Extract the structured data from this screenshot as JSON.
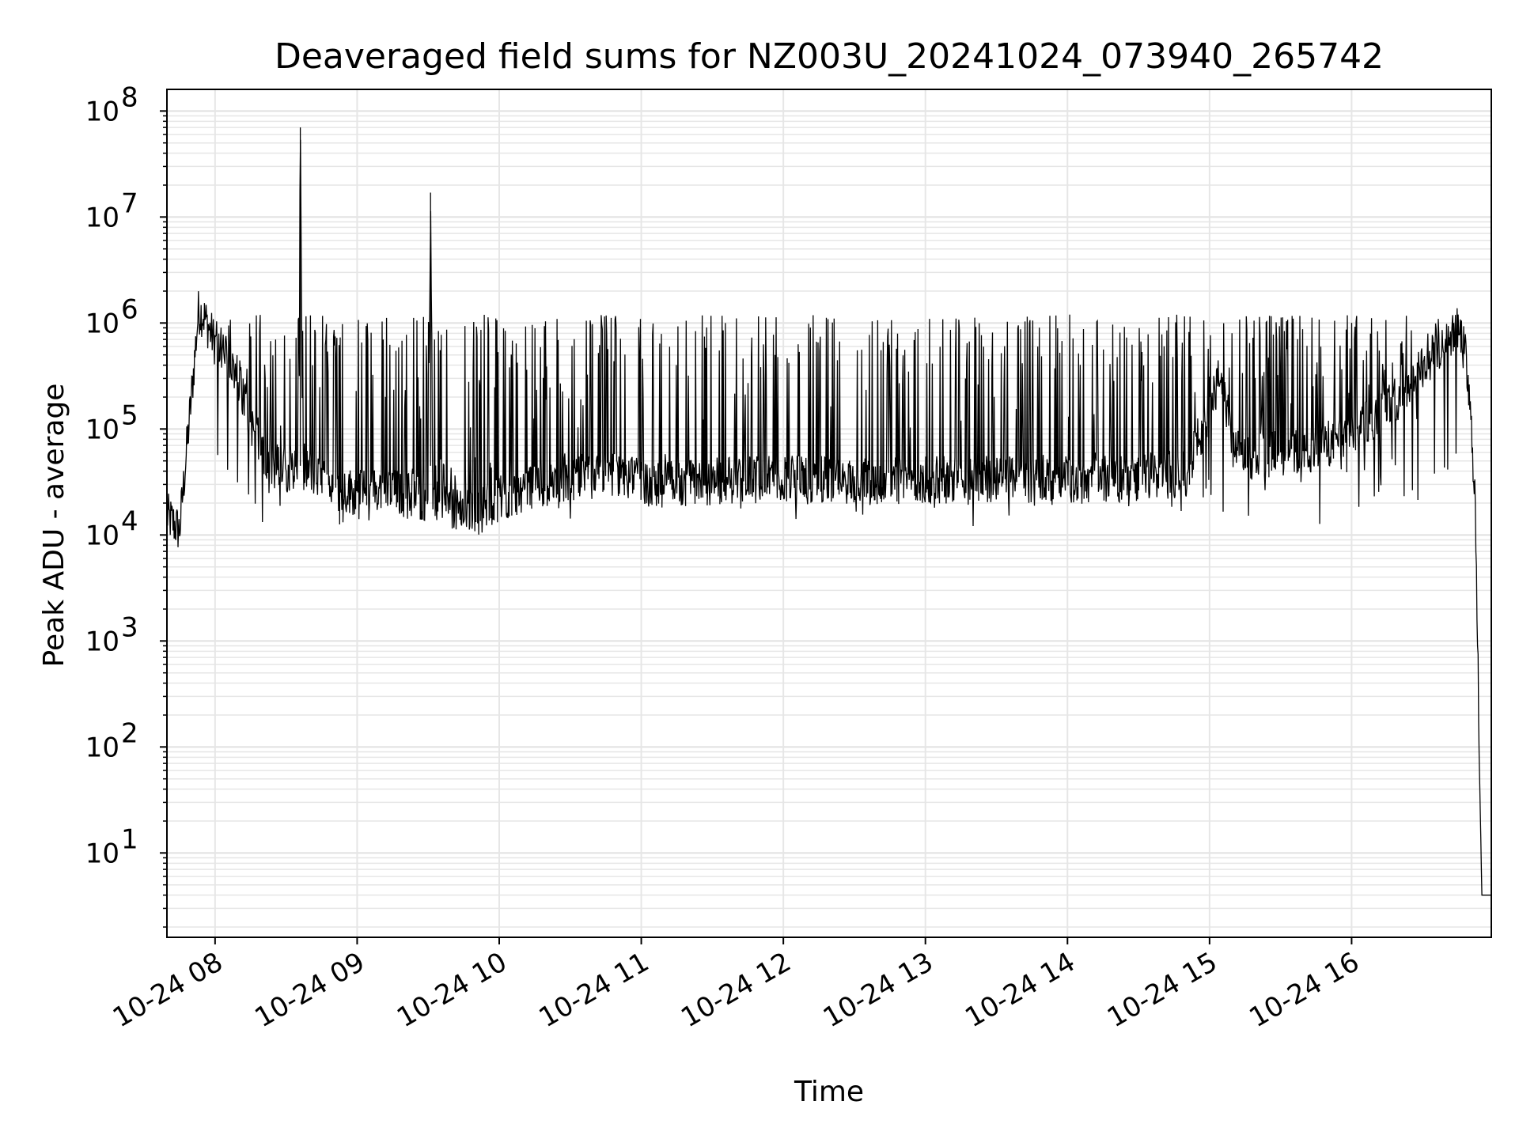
{
  "chart_data": {
    "type": "line",
    "title": "Deaveraged field sums for NZ003U_20241024_073940_265742",
    "xlabel": "Time",
    "ylabel": "Peak ADU - average",
    "xscale": "time",
    "yscale": "log",
    "xlim": [
      "2024-10-24T07:39:40",
      "2024-10-24T16:59:00"
    ],
    "ylim": [
      1.6,
      160000000
    ],
    "grid": true,
    "legend": "none",
    "x_ticks": [
      "10-24 08",
      "10-24 09",
      "10-24 10",
      "10-24 11",
      "10-24 12",
      "10-24 13",
      "10-24 14",
      "10-24 15",
      "10-24 16"
    ],
    "x_tick_times": [
      "2024-10-24T08:00",
      "2024-10-24T09:00",
      "2024-10-24T10:00",
      "2024-10-24T11:00",
      "2024-10-24T12:00",
      "2024-10-24T13:00",
      "2024-10-24T14:00",
      "2024-10-24T15:00",
      "2024-10-24T16:00"
    ],
    "y_ticks": [
      {
        "exp": 1,
        "value": 10
      },
      {
        "exp": 2,
        "value": 100
      },
      {
        "exp": 3,
        "value": 1000
      },
      {
        "exp": 4,
        "value": 10000
      },
      {
        "exp": 5,
        "value": 100000
      },
      {
        "exp": 6,
        "value": 1000000
      },
      {
        "exp": 7,
        "value": 10000000
      },
      {
        "exp": 8,
        "value": 100000000
      }
    ],
    "series": [
      {
        "color": "#000000",
        "x": [
          "2024-10-24T07:40",
          "2024-10-24T07:45",
          "2024-10-24T07:50",
          "2024-10-24T07:53",
          "2024-10-24T07:55",
          "2024-10-24T08:00",
          "2024-10-24T08:05",
          "2024-10-24T08:10",
          "2024-10-24T08:15",
          "2024-10-24T08:20",
          "2024-10-24T08:25",
          "2024-10-24T08:30",
          "2024-10-24T08:35",
          "2024-10-24T08:36",
          "2024-10-24T08:37",
          "2024-10-24T08:40",
          "2024-10-24T08:50",
          "2024-10-24T09:00",
          "2024-10-24T09:10",
          "2024-10-24T09:20",
          "2024-10-24T09:30",
          "2024-10-24T09:31",
          "2024-10-24T09:32",
          "2024-10-24T09:40",
          "2024-10-24T09:50",
          "2024-10-24T10:00",
          "2024-10-24T10:15",
          "2024-10-24T10:30",
          "2024-10-24T10:45",
          "2024-10-24T11:00",
          "2024-10-24T11:30",
          "2024-10-24T12:00",
          "2024-10-24T12:30",
          "2024-10-24T13:00",
          "2024-10-24T13:30",
          "2024-10-24T14:00",
          "2024-10-24T14:30",
          "2024-10-24T14:50",
          "2024-10-24T15:00",
          "2024-10-24T15:05",
          "2024-10-24T15:10",
          "2024-10-24T15:15",
          "2024-10-24T15:30",
          "2024-10-24T15:45",
          "2024-10-24T16:00",
          "2024-10-24T16:15",
          "2024-10-24T16:30",
          "2024-10-24T16:40",
          "2024-10-24T16:45",
          "2024-10-24T16:48",
          "2024-10-24T16:50",
          "2024-10-24T16:52",
          "2024-10-24T16:55",
          "2024-10-24T16:59"
        ],
        "y": [
          15000,
          11000,
          200000,
          1300000,
          1200000,
          650000,
          450000,
          300000,
          120000,
          60000,
          45000,
          42000,
          45000,
          70000000,
          45000,
          40000,
          28000,
          25000,
          27000,
          24000,
          22000,
          17000000,
          22000,
          18000,
          16000,
          22000,
          30000,
          32000,
          38000,
          30000,
          32000,
          35000,
          32000,
          33000,
          33000,
          32000,
          35000,
          38000,
          150000,
          350000,
          60000,
          55000,
          60000,
          65000,
          90000,
          160000,
          350000,
          750000,
          900000,
          500000,
          150000,
          30000,
          4,
          4
        ]
      }
    ],
    "spikes": {
      "x_range": [
        "2024-10-24T08:00",
        "2024-10-24T16:45"
      ],
      "low_range": [
        12000,
        60000
      ],
      "high_range": [
        100000,
        1200000
      ]
    }
  }
}
